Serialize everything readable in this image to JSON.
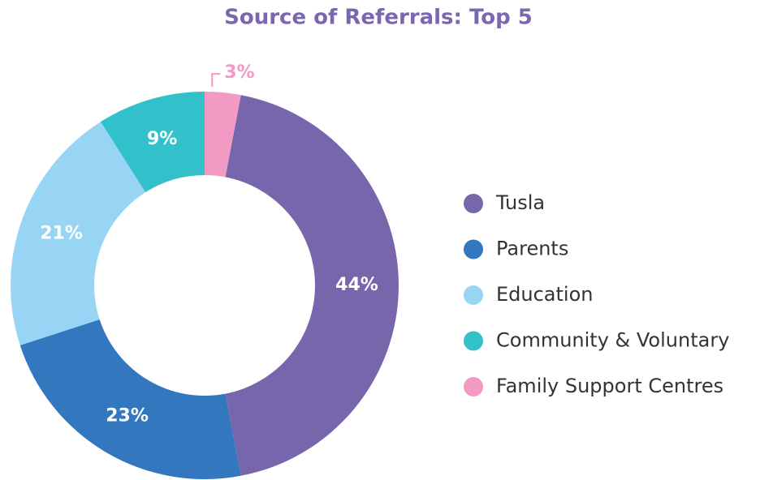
{
  "chart_data": {
    "type": "donut",
    "title": "Source of Referrals: Top 5",
    "categories": [
      "Tusla",
      "Parents",
      "Education",
      "Community & Voluntary",
      "Family Support Centres"
    ],
    "values": [
      44,
      23,
      21,
      9,
      3
    ],
    "value_labels": [
      "44%",
      "23%",
      "21%",
      "9%",
      "3%"
    ],
    "colors": [
      "#7866ad",
      "#3378bf",
      "#98d5f4",
      "#32c1cb",
      "#f29ac4"
    ],
    "legend": "right"
  }
}
